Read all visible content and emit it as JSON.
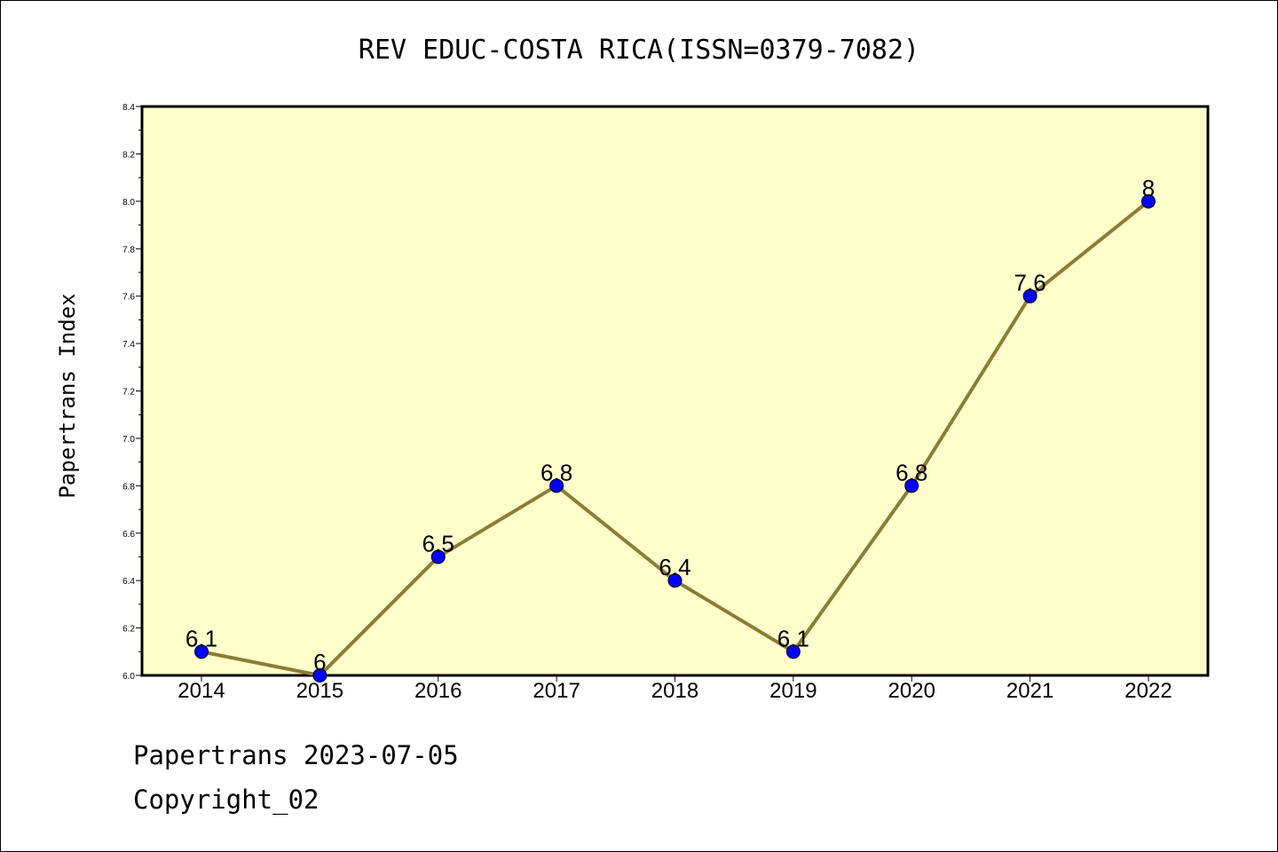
{
  "chart_data": {
    "type": "line",
    "title": "REV EDUC-COSTA RICA(ISSN=0379-7082)",
    "xlabel": "",
    "ylabel": "Papertrans Index",
    "categories": [
      "2014",
      "2015",
      "2016",
      "2017",
      "2018",
      "2019",
      "2020",
      "2021",
      "2022"
    ],
    "series": [
      {
        "values": [
          6.1,
          6.0,
          6.5,
          6.8,
          6.4,
          6.1,
          6.8,
          7.6,
          8.0
        ],
        "labels": [
          "6.1",
          "6",
          "6.5",
          "6.8",
          "6.4",
          "6.1",
          "6.8",
          "7.6",
          "8"
        ]
      }
    ],
    "ylim": [
      6.0,
      8.4
    ],
    "yticks": [
      "6.0",
      "6.2",
      "6.4",
      "6.6",
      "6.8",
      "7.0",
      "7.2",
      "7.4",
      "7.6",
      "7.8",
      "8.0",
      "8.2",
      "8.4"
    ],
    "grid": false,
    "colors": {
      "plot_background": "#ffffcc",
      "line": "#8b7d35",
      "marker": "#0000ff"
    }
  },
  "footer": {
    "line1": "Papertrans 2023-07-05",
    "line2": "Copyright_02"
  }
}
